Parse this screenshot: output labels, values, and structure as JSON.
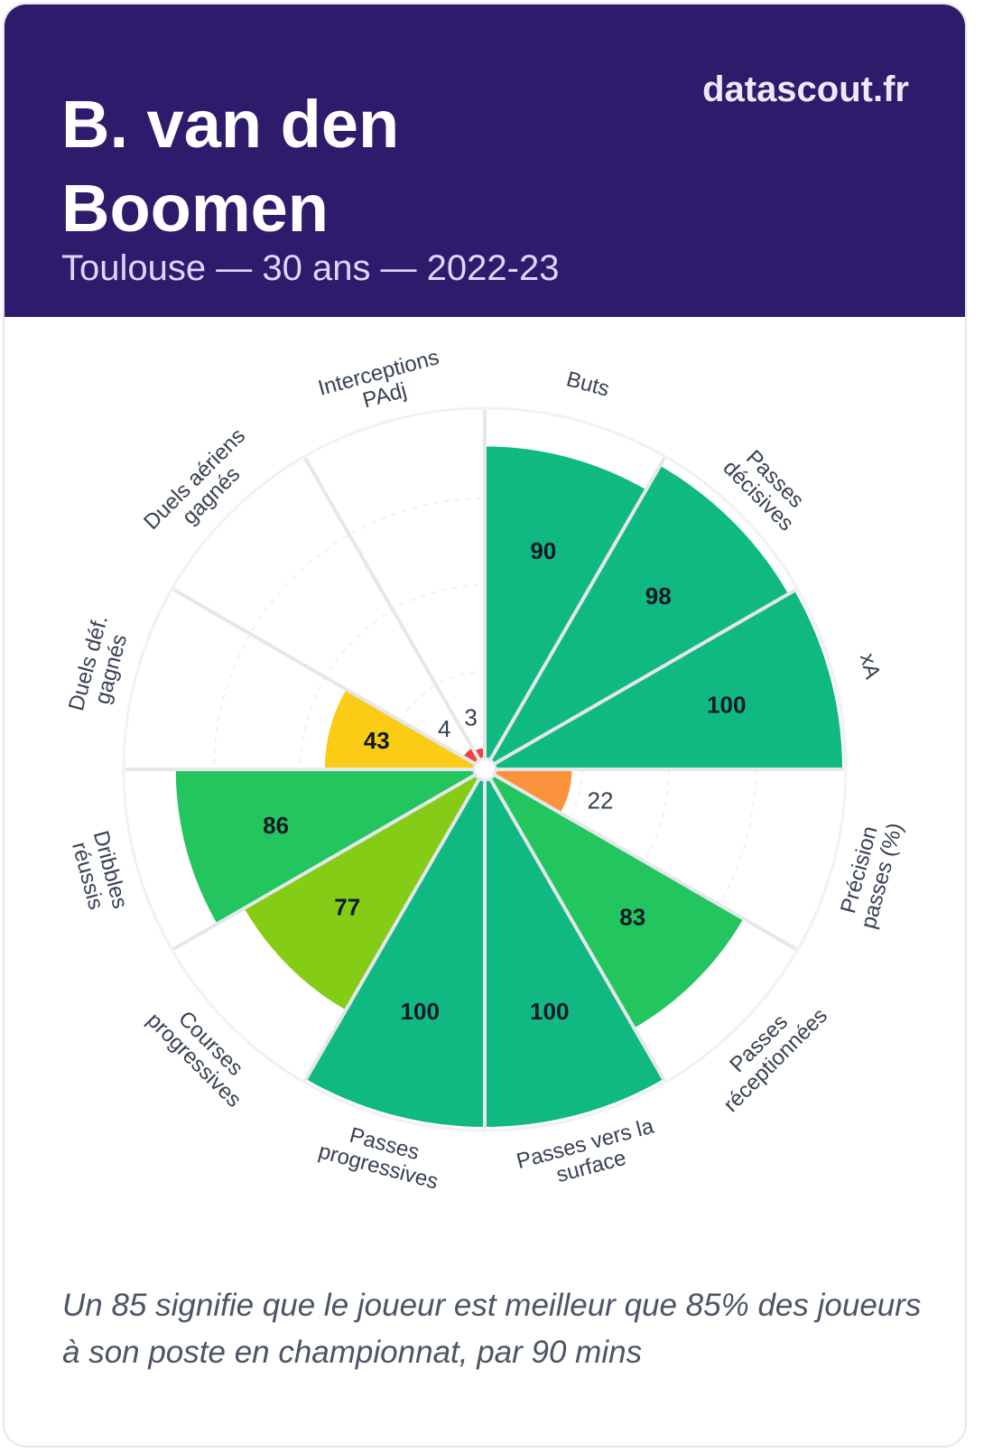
{
  "header": {
    "title": "B. van den Boomen",
    "subtitle": "Toulouse — 30 ans — 2022-23",
    "brand": "datascout.fr",
    "background_color": "#2e1b6b"
  },
  "chart_data": {
    "type": "polar-bar",
    "range": [
      0,
      100
    ],
    "grid": true,
    "categories": [
      [
        "Buts"
      ],
      [
        "Passes",
        "décisives"
      ],
      [
        "xA"
      ],
      [
        "Précision",
        "passes (%)"
      ],
      [
        "Passes",
        "réceptionnées"
      ],
      [
        "Passes vers la",
        "surface"
      ],
      [
        "Passes",
        "progressives"
      ],
      [
        "Courses",
        "progressives"
      ],
      [
        "Dribbles",
        "réussis"
      ],
      [
        "Duels déf.",
        "gagnés"
      ],
      [
        "Duels aériens",
        "gagnés"
      ],
      [
        "Interceptions",
        "PAdj"
      ]
    ],
    "values": [
      90,
      98,
      100,
      22,
      83,
      100,
      100,
      77,
      86,
      43,
      4,
      3
    ],
    "colors": [
      "#10b981",
      "#10b981",
      "#10b981",
      "#fb923c",
      "#22c55e",
      "#10b981",
      "#10b981",
      "#84cc16",
      "#22c55e",
      "#facc15",
      "#ef4444",
      "#ef4444"
    ]
  },
  "footer": {
    "note": "Un 85 signifie que le joueur est meilleur que 85% des joueurs à son poste en championnat, par 90 mins"
  }
}
